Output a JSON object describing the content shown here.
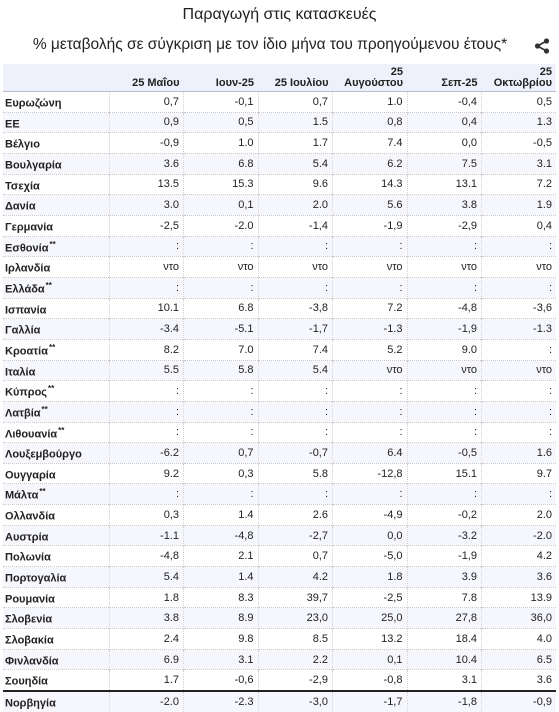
{
  "header": {
    "title": "Παραγωγή στις κατασκευές",
    "subtitle": "% μεταβολής σε σύγκριση με τον ίδιο μήνα του προηγούμενου έτους*",
    "share_icon": "share-icon"
  },
  "table": {
    "columns": [
      "",
      "25 Μαΐου",
      "Ιουν-25",
      "25 Ιουλίου",
      "25 Αυγούστου",
      "Σεπ-25",
      "25 Οκτωβρίου"
    ],
    "rows": [
      {
        "name": "Ευρωζώνη",
        "mark": "",
        "values": [
          "0,7",
          "-0,1",
          "0,7",
          "1.0",
          "-0,4",
          "0,5"
        ]
      },
      {
        "name": "ΕΕ",
        "mark": "",
        "values": [
          "0,9",
          "0,5",
          "1.5",
          "0,8",
          "0,4",
          "1.3"
        ]
      },
      {
        "name": "Βέλγιο",
        "mark": "",
        "values": [
          "-0,9",
          "1.0",
          "1.7",
          "7.4",
          "0,0",
          "-0,5"
        ]
      },
      {
        "name": "Βουλγαρία",
        "mark": "",
        "values": [
          "3.6",
          "6.8",
          "5.4",
          "6.2",
          "7.5",
          "3.1"
        ]
      },
      {
        "name": "Τσεχία",
        "mark": "",
        "values": [
          "13.5",
          "15.3",
          "9.6",
          "14.3",
          "13.1",
          "7.2"
        ]
      },
      {
        "name": "Δανία",
        "mark": "",
        "values": [
          "3.0",
          "0,1",
          "2.0",
          "5.6",
          "3.8",
          "1.9"
        ]
      },
      {
        "name": "Γερμανία",
        "mark": "",
        "values": [
          "-2,5",
          "-2.0",
          "-1,4",
          "-1,9",
          "-2,9",
          "0,4"
        ]
      },
      {
        "name": "Εσθονία",
        "mark": "**",
        "values": [
          ":",
          ":",
          ":",
          ":",
          ":",
          ":"
        ]
      },
      {
        "name": "Ιρλανδία",
        "mark": "",
        "values": [
          "ντο",
          "ντο",
          "ντο",
          "ντο",
          "ντο",
          "ντο"
        ]
      },
      {
        "name": "Ελλάδα",
        "mark": "**",
        "values": [
          ":",
          ":",
          ":",
          ":",
          ":",
          ":"
        ]
      },
      {
        "name": "Ισπανία",
        "mark": "",
        "values": [
          "10.1",
          "6.8",
          "-3,8",
          "7.2",
          "-4,8",
          "-3,6"
        ]
      },
      {
        "name": "Γαλλία",
        "mark": "",
        "values": [
          "-3.4",
          "-5.1",
          "-1,7",
          "-1.3",
          "-1,9",
          "-1.3"
        ]
      },
      {
        "name": "Κροατία",
        "mark": "**",
        "values": [
          "8.2",
          "7.0",
          "7.4",
          "5.2",
          "9.0",
          ":"
        ]
      },
      {
        "name": "Ιταλία",
        "mark": "",
        "values": [
          "5.5",
          "5.8",
          "5.4",
          "ντο",
          "ντο",
          "ντο"
        ]
      },
      {
        "name": "Κύπρος",
        "mark": "**",
        "values": [
          ":",
          ":",
          ":",
          ":",
          ":",
          ":"
        ]
      },
      {
        "name": "Λατβία",
        "mark": "**",
        "values": [
          ":",
          ":",
          ":",
          ":",
          ":",
          ":"
        ]
      },
      {
        "name": "Λιθουανία",
        "mark": "**",
        "values": [
          ":",
          ":",
          ":",
          ":",
          ":",
          ":"
        ]
      },
      {
        "name": "Λουξεμβούργο",
        "mark": "",
        "values": [
          "-6.2",
          "0,7",
          "-0,7",
          "6.4",
          "-0,5",
          "1.6"
        ]
      },
      {
        "name": "Ουγγαρία",
        "mark": "",
        "values": [
          "9.2",
          "0,3",
          "5.8",
          "-12,8",
          "15.1",
          "9.7"
        ]
      },
      {
        "name": "Μάλτα",
        "mark": "**",
        "values": [
          ":",
          ":",
          ":",
          ":",
          ":",
          ":"
        ]
      },
      {
        "name": "Ολλανδία",
        "mark": "",
        "values": [
          "0,3",
          "1.4",
          "2.6",
          "-4,9",
          "-0,2",
          "2.0"
        ]
      },
      {
        "name": "Αυστρία",
        "mark": "",
        "values": [
          "-1.1",
          "-4,8",
          "-2,7",
          "0,0",
          "-3.2",
          "-2.0"
        ]
      },
      {
        "name": "Πολωνία",
        "mark": "",
        "values": [
          "-4,8",
          "2.1",
          "0,7",
          "-5,0",
          "-1,9",
          "4.2"
        ]
      },
      {
        "name": "Πορτογαλία",
        "mark": "",
        "values": [
          "5.4",
          "1.4",
          "4.2",
          "1.8",
          "3.9",
          "3.6"
        ]
      },
      {
        "name": "Ρουμανία",
        "mark": "",
        "values": [
          "1.8",
          "8.3",
          "39,7",
          "-2,5",
          "7.8",
          "13.9"
        ]
      },
      {
        "name": "Σλοβενία",
        "mark": "",
        "values": [
          "3.8",
          "8.9",
          "23,0",
          "25,0",
          "27,8",
          "36,0"
        ]
      },
      {
        "name": "Σλοβακία",
        "mark": "",
        "values": [
          "2.4",
          "9.8",
          "8.5",
          "13.2",
          "18.4",
          "4.0"
        ]
      },
      {
        "name": "Φινλανδία",
        "mark": "",
        "values": [
          "6.9",
          "3.1",
          "2.2",
          "0,1",
          "10.4",
          "6.5"
        ]
      },
      {
        "name": "Σουηδία",
        "mark": "",
        "values": [
          "1.7",
          "-0,6",
          "-2,9",
          "-0,8",
          "3.1",
          "3.6"
        ]
      },
      {
        "name": "Νορβηγία",
        "mark": "",
        "values": [
          "-2.0",
          "-2.3",
          "-3,0",
          "-1,7",
          "-1,8",
          "-0,9"
        ]
      }
    ]
  }
}
